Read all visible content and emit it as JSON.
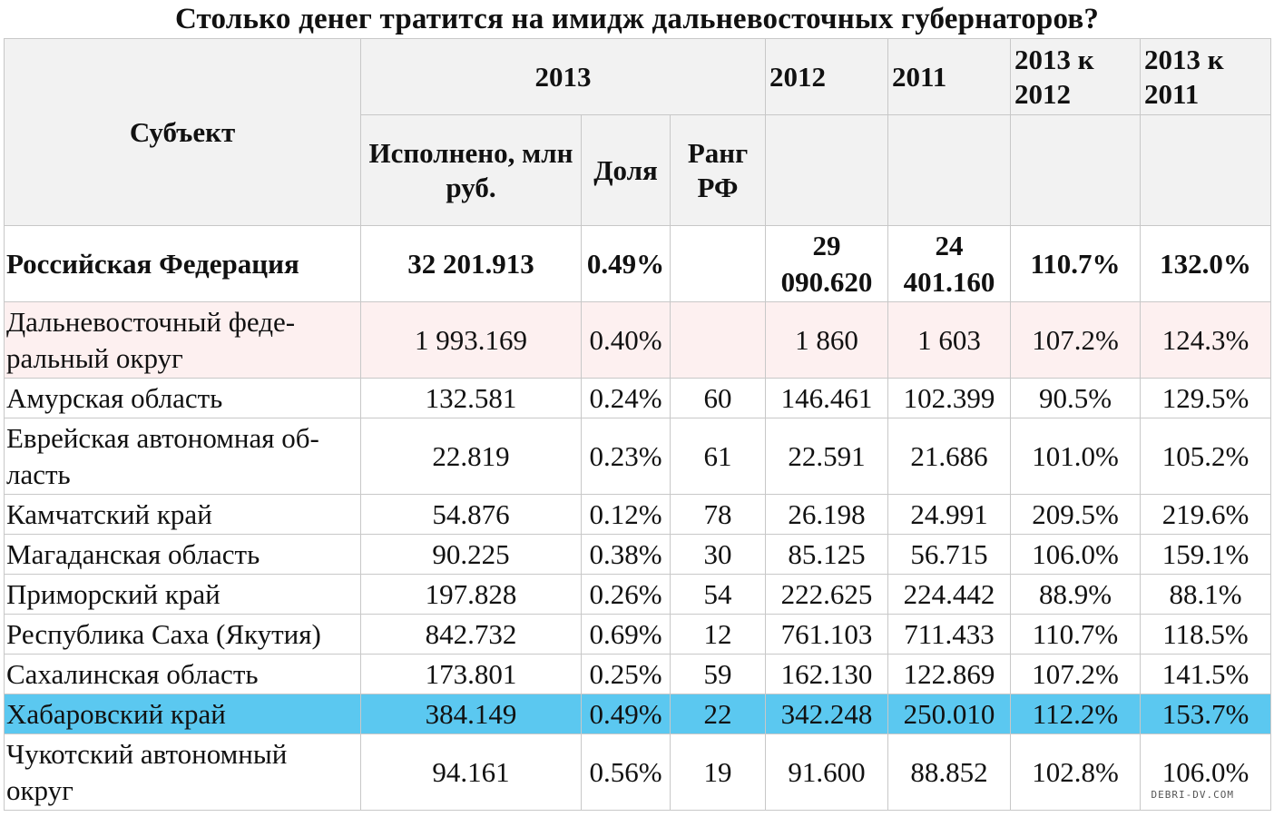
{
  "title": "Столько денег тратится на имидж дальневосточных губернаторов?",
  "watermark": "DEBRI-DV.COM",
  "chart_data": {
    "type": "table",
    "title": "Столько денег тратится на имидж дальневосточных губернаторов?",
    "header": {
      "subject": "Субъект",
      "y2013": "2013",
      "y2012": "2012",
      "y2011": "2011",
      "c2013_2012": "2013 к 2012",
      "c2013_2011": "2013 к 2011",
      "executed": "Исполнено, млн руб.",
      "share": "Доля",
      "rank": "Ранг РФ"
    },
    "rows": [
      {
        "name": "Российская Федерация",
        "executed": "32 201.913",
        "share": "0.49%",
        "rank": "",
        "y2012": "29 090.620",
        "y2011": "24 401.160",
        "c2012": "110.7%",
        "c2011": "132.0%"
      },
      {
        "name": "Дальневосточный феде-ральный округ",
        "executed": "1 993.169",
        "share": "0.40%",
        "rank": "",
        "y2012": "1 860",
        "y2011": "1 603",
        "c2012": "107.2%",
        "c2011": "124.3%"
      },
      {
        "name": "Амурская область",
        "executed": "132.581",
        "share": "0.24%",
        "rank": "60",
        "y2012": "146.461",
        "y2011": "102.399",
        "c2012": "90.5%",
        "c2011": "129.5%"
      },
      {
        "name": "Еврейская автономная об-ласть",
        "executed": "22.819",
        "share": "0.23%",
        "rank": "61",
        "y2012": "22.591",
        "y2011": "21.686",
        "c2012": "101.0%",
        "c2011": "105.2%"
      },
      {
        "name": "Камчатский край",
        "executed": "54.876",
        "share": "0.12%",
        "rank": "78",
        "y2012": "26.198",
        "y2011": "24.991",
        "c2012": "209.5%",
        "c2011": "219.6%"
      },
      {
        "name": "Магаданская область",
        "executed": "90.225",
        "share": "0.38%",
        "rank": "30",
        "y2012": "85.125",
        "y2011": "56.715",
        "c2012": "106.0%",
        "c2011": "159.1%"
      },
      {
        "name": "Приморский край",
        "executed": "197.828",
        "share": "0.26%",
        "rank": "54",
        "y2012": "222.625",
        "y2011": "224.442",
        "c2012": "88.9%",
        "c2011": "88.1%"
      },
      {
        "name": "Республика Саха (Якутия)",
        "executed": "842.732",
        "share": "0.69%",
        "rank": "12",
        "y2012": "761.103",
        "y2011": "711.433",
        "c2012": "110.7%",
        "c2011": "118.5%"
      },
      {
        "name": "Сахалинская область",
        "executed": "173.801",
        "share": "0.25%",
        "rank": "59",
        "y2012": "162.130",
        "y2011": "122.869",
        "c2012": "107.2%",
        "c2011": "141.5%"
      },
      {
        "name": "Хабаровский край",
        "executed": "384.149",
        "share": "0.49%",
        "rank": "22",
        "y2012": "342.248",
        "y2011": "250.010",
        "c2012": "112.2%",
        "c2011": "153.7%"
      },
      {
        "name": "Чукотский автономный округ",
        "executed": "94.161",
        "share": "0.56%",
        "rank": "19",
        "y2012": "91.600",
        "y2011": "88.852",
        "c2012": "102.8%",
        "c2011": "106.0%"
      }
    ],
    "highlight_row": "Хабаровский край",
    "colors": {
      "highlight": "#5bc8f0",
      "federal_district": "#fdf0f0",
      "header": "#f2f2f2"
    }
  }
}
